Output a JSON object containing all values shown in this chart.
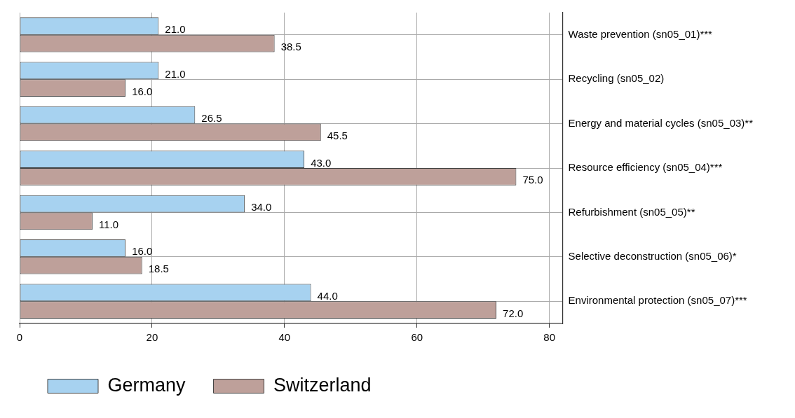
{
  "chart_data": {
    "type": "bar",
    "orientation": "horizontal",
    "categories": [
      "Waste prevention (sn05_01)***",
      "Recycling (sn05_02)",
      "Energy and material cycles (sn05_03)**",
      "Resource efficiency (sn05_04)***",
      "Refurbishment (sn05_05)**",
      "Selective deconstruction (sn05_06)*",
      "Environmental protection (sn05_07)***"
    ],
    "series": [
      {
        "name": "Germany",
        "color": "#a7d2f0",
        "values": [
          21.0,
          21.0,
          26.5,
          43.0,
          34.0,
          16.0,
          44.0
        ],
        "value_labels": [
          "21.0",
          "21.0",
          "26.5",
          "43.0",
          "34.0",
          "16.0",
          "44.0"
        ]
      },
      {
        "name": "Switzerland",
        "color": "#bea09a",
        "values": [
          38.5,
          16.0,
          45.5,
          75.0,
          11.0,
          18.5,
          72.0
        ],
        "value_labels": [
          "38.5",
          "16.0",
          "45.5",
          "75.0",
          "11.0",
          "18.5",
          "72.0"
        ]
      }
    ],
    "xlim": [
      0,
      82
    ],
    "xticks": [
      0,
      20,
      40,
      60,
      80
    ],
    "grid": true,
    "legend": "bottom left"
  }
}
